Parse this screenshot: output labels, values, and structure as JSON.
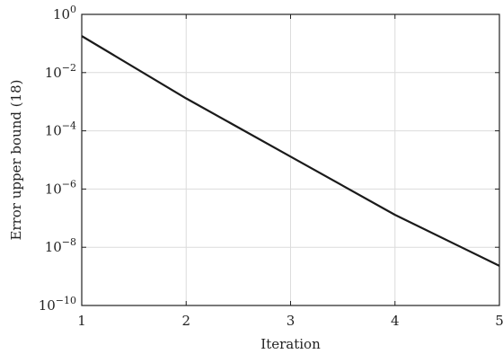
{
  "chart_data": {
    "type": "line",
    "xlabel": "Iteration",
    "ylabel": "Error upper bound (18)",
    "xlim": [
      1,
      5
    ],
    "ylim": [
      1e-10,
      1
    ],
    "yscale": "log",
    "grid": true,
    "x_ticks": [
      "1",
      "2",
      "3",
      "4",
      "5"
    ],
    "y_ticks": [
      {
        "base": "10",
        "exp": "0",
        "value": 1
      },
      {
        "base": "10",
        "exp": "−2",
        "value": 0.01
      },
      {
        "base": "10",
        "exp": "−4",
        "value": 0.0001
      },
      {
        "base": "10",
        "exp": "−6",
        "value": 1e-06
      },
      {
        "base": "10",
        "exp": "−8",
        "value": 1e-08
      },
      {
        "base": "10",
        "exp": "−10",
        "value": 1e-10
      }
    ],
    "series": [
      {
        "x": [
          1,
          2,
          3,
          4,
          5
        ],
        "y": [
          0.18,
          0.0013,
          1.3e-05,
          1.3e-07,
          2.3e-09
        ],
        "color": "#1a1a1a"
      }
    ]
  }
}
